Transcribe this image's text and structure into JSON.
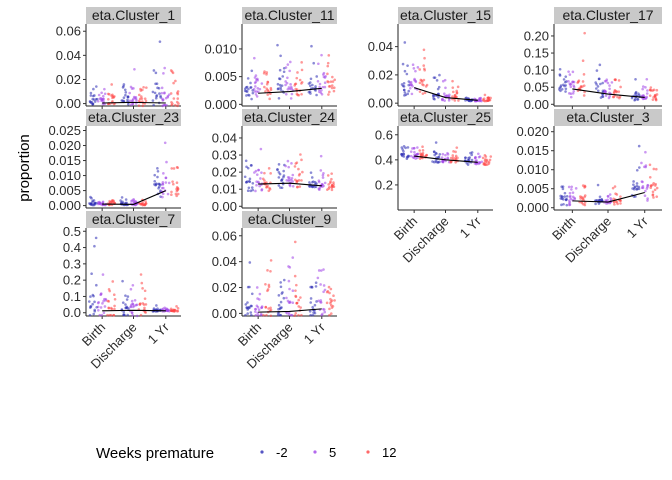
{
  "chart_data": {
    "type": "scatter",
    "ylabel": "proportion",
    "x_categories": [
      "Birth",
      "Discharge",
      "1 Yr"
    ],
    "legend": {
      "title": "Weeks premature",
      "position": "bottom",
      "entries": [
        {
          "label": "-2",
          "color": "#2b2bb5"
        },
        {
          "label": "5",
          "color": "#a044e8"
        },
        {
          "label": "12",
          "color": "#ff4444"
        }
      ]
    },
    "colors": {
      "strip_bg": "#c9c9c9",
      "trend_line": "#000000"
    },
    "panels": [
      {
        "title": "eta.Cluster_1",
        "ylim": [
          -0.002,
          0.066
        ],
        "yticks": [
          "0.00",
          "0.02",
          "0.04",
          "0.06"
        ],
        "mean_line": [
          0.0005,
          0.001,
          0.0005
        ],
        "show_x_labels": false,
        "spread": [
          {
            "base": 0.0015,
            "max": 0.018
          },
          {
            "base": 0.002,
            "max": 0.03
          },
          {
            "base": 0.0015,
            "max": 0.063
          }
        ]
      },
      {
        "title": "eta.Cluster_11",
        "ylim": [
          -0.0003,
          0.0145
        ],
        "yticks": [
          "0.000",
          "0.005",
          "0.010"
        ],
        "mean_line": [
          0.002,
          0.0023,
          0.0029
        ],
        "show_x_labels": false,
        "spread": [
          {
            "base": 0.002,
            "max": 0.0105
          },
          {
            "base": 0.0023,
            "max": 0.0135
          },
          {
            "base": 0.0029,
            "max": 0.012
          }
        ]
      },
      {
        "title": "eta.Cluster_15",
        "ylim": [
          -0.002,
          0.056
        ],
        "yticks": [
          "0.00",
          "0.02",
          "0.04"
        ],
        "mean_line": [
          0.011,
          0.004,
          0.002
        ],
        "show_x_labels": false,
        "spread": [
          {
            "base": 0.011,
            "max": 0.052
          },
          {
            "base": 0.004,
            "max": 0.02
          },
          {
            "base": 0.002,
            "max": 0.006
          }
        ]
      },
      {
        "title": "eta.Cluster_17",
        "ylim": [
          -0.005,
          0.235
        ],
        "yticks": [
          "0.00",
          "0.05",
          "0.10",
          "0.15",
          "0.20"
        ],
        "mean_line": [
          0.045,
          0.03,
          0.02
        ],
        "show_x_labels": false,
        "spread": [
          {
            "base": 0.045,
            "max": 0.22
          },
          {
            "base": 0.03,
            "max": 0.12
          },
          {
            "base": 0.02,
            "max": 0.08
          }
        ]
      },
      {
        "title": "eta.Cluster_23",
        "ylim": [
          -0.0008,
          0.0265
        ],
        "yticks": [
          "0.000",
          "0.005",
          "0.010",
          "0.015",
          "0.020",
          "0.025"
        ],
        "mean_line": [
          0.0005,
          0.0004,
          0.005
        ],
        "show_x_labels": false,
        "spread": [
          {
            "base": 0.0005,
            "max": 0.003
          },
          {
            "base": 0.0005,
            "max": 0.003
          },
          {
            "base": 0.005,
            "max": 0.024
          }
        ]
      },
      {
        "title": "eta.Cluster_24",
        "ylim": [
          -0.001,
          0.047
        ],
        "yticks": [
          "0.00",
          "0.01",
          "0.02",
          "0.03",
          "0.04"
        ],
        "mean_line": [
          0.013,
          0.0135,
          0.012
        ],
        "show_x_labels": false,
        "spread": [
          {
            "base": 0.013,
            "max": 0.043
          },
          {
            "base": 0.014,
            "max": 0.037
          },
          {
            "base": 0.012,
            "max": 0.03
          }
        ]
      },
      {
        "title": "eta.Cluster_25",
        "ylim": [
          0.0,
          0.67
        ],
        "yticks": [
          "0.2",
          "0.4",
          "0.6"
        ],
        "mean_line": [
          0.43,
          0.4,
          0.38
        ],
        "show_x_labels": true,
        "spread": [
          {
            "base": 0.43,
            "max": 0.58
          },
          {
            "base": 0.4,
            "max": 0.55
          },
          {
            "base": 0.38,
            "max": 0.52
          }
        ]
      },
      {
        "title": "eta.Cluster_3",
        "ylim": [
          -0.0006,
          0.0215
        ],
        "yticks": [
          "0.000",
          "0.005",
          "0.010",
          "0.015",
          "0.020"
        ],
        "mean_line": [
          0.0018,
          0.0015,
          0.004
        ],
        "show_x_labels": true,
        "spread": [
          {
            "base": 0.0018,
            "max": 0.01
          },
          {
            "base": 0.0015,
            "max": 0.006
          },
          {
            "base": 0.004,
            "max": 0.02
          }
        ]
      },
      {
        "title": "eta.Cluster_7",
        "ylim": [
          -0.02,
          0.52
        ],
        "yticks": [
          "0.0",
          "0.1",
          "0.2",
          "0.3",
          "0.4",
          "0.5"
        ],
        "mean_line": [
          0.012,
          0.015,
          0.012
        ],
        "show_x_labels": true,
        "spread": [
          {
            "base": 0.012,
            "max": 0.48
          },
          {
            "base": 0.015,
            "max": 0.35
          },
          {
            "base": 0.012,
            "max": 0.05
          }
        ]
      },
      {
        "title": "eta.Cluster_9",
        "ylim": [
          -0.002,
          0.066
        ],
        "yticks": [
          "0.00",
          "0.02",
          "0.04",
          "0.06"
        ],
        "mean_line": [
          0.001,
          0.0015,
          0.0035
        ],
        "show_x_labels": true,
        "spread": [
          {
            "base": 0.001,
            "max": 0.045
          },
          {
            "base": 0.0015,
            "max": 0.058
          },
          {
            "base": 0.0035,
            "max": 0.052
          }
        ]
      }
    ]
  }
}
